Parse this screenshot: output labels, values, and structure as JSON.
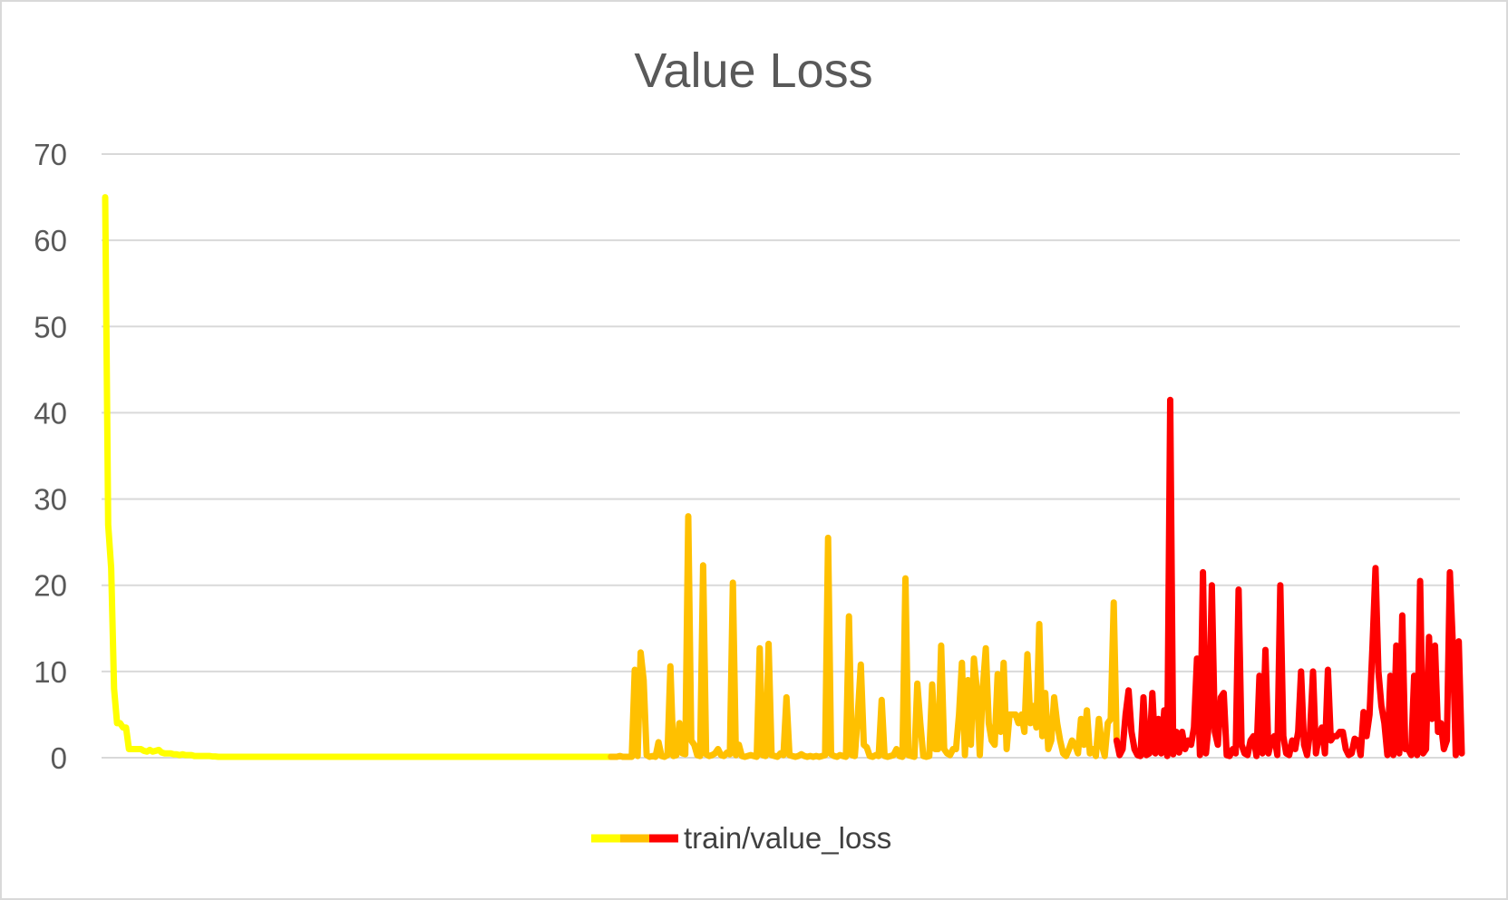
{
  "chart_data": {
    "type": "line",
    "title": "Value Loss",
    "xlabel": "",
    "ylabel": "",
    "ylim": [
      0,
      70
    ],
    "yticks": [
      0,
      10,
      20,
      30,
      40,
      50,
      60,
      70
    ],
    "grid": true,
    "legend_position": "bottom",
    "series": [
      {
        "name": "train/value_loss",
        "segment_colors": [
          "#ffff00",
          "#ffc000",
          "#ff0000"
        ],
        "segment_breaks": [
          170,
          340
        ],
        "values": [
          65.0,
          27.0,
          22.0,
          8.0,
          4.0,
          4.0,
          3.5,
          3.5,
          1.0,
          1.0,
          1.0,
          1.0,
          1.0,
          0.8,
          0.7,
          0.9,
          0.7,
          0.8,
          0.9,
          0.6,
          0.5,
          0.5,
          0.5,
          0.4,
          0.4,
          0.3,
          0.4,
          0.3,
          0.3,
          0.3,
          0.2,
          0.2,
          0.2,
          0.2,
          0.2,
          0.2,
          0.15,
          0.15,
          0.1,
          0.1,
          0.1,
          0.1,
          0.1,
          0.1,
          0.1,
          0.1,
          0.1,
          0.1,
          0.1,
          0.1,
          0.1,
          0.1,
          0.1,
          0.1,
          0.1,
          0.1,
          0.1,
          0.1,
          0.1,
          0.1,
          0.1,
          0.1,
          0.1,
          0.1,
          0.1,
          0.1,
          0.1,
          0.1,
          0.1,
          0.1,
          0.1,
          0.1,
          0.1,
          0.1,
          0.1,
          0.1,
          0.1,
          0.1,
          0.1,
          0.1,
          0.1,
          0.1,
          0.1,
          0.1,
          0.1,
          0.1,
          0.1,
          0.1,
          0.1,
          0.1,
          0.1,
          0.1,
          0.1,
          0.1,
          0.1,
          0.1,
          0.1,
          0.1,
          0.1,
          0.1,
          0.1,
          0.1,
          0.1,
          0.1,
          0.1,
          0.1,
          0.1,
          0.1,
          0.1,
          0.1,
          0.1,
          0.1,
          0.1,
          0.1,
          0.1,
          0.1,
          0.1,
          0.1,
          0.1,
          0.1,
          0.1,
          0.1,
          0.1,
          0.1,
          0.1,
          0.1,
          0.1,
          0.1,
          0.1,
          0.1,
          0.1,
          0.1,
          0.1,
          0.1,
          0.1,
          0.1,
          0.1,
          0.1,
          0.1,
          0.1,
          0.1,
          0.1,
          0.1,
          0.1,
          0.1,
          0.1,
          0.1,
          0.1,
          0.1,
          0.1,
          0.1,
          0.1,
          0.1,
          0.1,
          0.1,
          0.1,
          0.1,
          0.1,
          0.1,
          0.1,
          0.1,
          0.1,
          0.1,
          0.1,
          0.1,
          0.1,
          0.1,
          0.1,
          0.1,
          0.1,
          0.1,
          0.1,
          0.1,
          0.2,
          0.1,
          0.1,
          0.1,
          0.1,
          10.2,
          0.2,
          12.2,
          9.0,
          0.3,
          0.1,
          0.2,
          0.1,
          1.8,
          0.2,
          0.1,
          0.3,
          10.6,
          0.2,
          0.3,
          4.0,
          0.5,
          0.4,
          28.0,
          2.0,
          1.5,
          0.3,
          0.2,
          22.3,
          0.4,
          0.2,
          0.3,
          0.5,
          1.0,
          0.3,
          0.2,
          0.6,
          0.4,
          20.3,
          0.3,
          1.5,
          0.2,
          0.1,
          0.2,
          0.3,
          0.2,
          0.1,
          12.7,
          0.3,
          0.2,
          13.2,
          0.3,
          0.2,
          0.1,
          0.5,
          0.3,
          7.0,
          0.3,
          0.2,
          0.1,
          0.2,
          0.4,
          0.2,
          0.1,
          0.2,
          0.1,
          0.2,
          0.1,
          0.2,
          0.3,
          25.5,
          0.4,
          0.2,
          0.1,
          0.3,
          0.2,
          0.1,
          16.4,
          0.3,
          0.2,
          5.0,
          10.8,
          1.5,
          1.2,
          0.2,
          0.1,
          0.3,
          0.2,
          6.7,
          0.2,
          0.1,
          0.2,
          0.3,
          1.0,
          0.2,
          0.1,
          20.8,
          0.3,
          0.2,
          0.1,
          8.6,
          4.0,
          0.2,
          0.1,
          0.2,
          8.5,
          1.0,
          1.0,
          13.0,
          1.0,
          0.5,
          0.3,
          1.0,
          1.0,
          5.0,
          11.0,
          0.3,
          9.0,
          1.5,
          11.5,
          8.0,
          0.3,
          8.0,
          12.7,
          4.0,
          2.0,
          1.5,
          9.7,
          3.0,
          11.0,
          1.0,
          5.0,
          5.0,
          5.0,
          4.0,
          5.0,
          3.0,
          12.0,
          4.0,
          6.0,
          3.5,
          15.5,
          2.5,
          7.5,
          1.0,
          2.0,
          7.0,
          4.0,
          2.0,
          0.5,
          0.2,
          1.0,
          2.0,
          1.5,
          0.5,
          4.5,
          1.5,
          5.5,
          0.5,
          1.0,
          0.2,
          4.5,
          1.5,
          0.2,
          4.0,
          4.5,
          18.0,
          2.0,
          0.3,
          1.0,
          5.0,
          7.8,
          3.0,
          1.0,
          0.3,
          0.2,
          7.0,
          0.3,
          0.5,
          7.5,
          0.5,
          4.5,
          0.5,
          5.5,
          0.2,
          41.5,
          0.4,
          3.0,
          0.6,
          3.0,
          1.0,
          2.0,
          1.5,
          3.5,
          11.5,
          0.3,
          21.5,
          0.5,
          4.0,
          20.0,
          3.0,
          1.5,
          7.0,
          7.5,
          0.3,
          0.2,
          1.0,
          0.5,
          19.5,
          1.5,
          0.5,
          0.3,
          2.0,
          2.5,
          0.2,
          9.5,
          0.5,
          12.5,
          0.5,
          2.0,
          2.5,
          0.3,
          20.0,
          2.5,
          0.5,
          0.3,
          2.0,
          1.0,
          3.0,
          10.0,
          1.5,
          0.3,
          3.0,
          10.0,
          0.5,
          2.5,
          3.5,
          0.5,
          10.2,
          2.0,
          2.5,
          2.5,
          3.0,
          3.0,
          1.0,
          0.3,
          0.5,
          2.2,
          2.0,
          0.3,
          5.3,
          2.5,
          5.0,
          13.0,
          22.0,
          10.0,
          6.0,
          4.0,
          0.3,
          9.5,
          0.3,
          13.0,
          0.5,
          16.5,
          1.0,
          1.0,
          0.3,
          9.5,
          0.3,
          20.5,
          0.5,
          1.0,
          14.0,
          4.5,
          13.0,
          3.0,
          4.0,
          1.0,
          2.0,
          21.5,
          13.0,
          0.3,
          13.5,
          0.5
        ]
      }
    ]
  }
}
